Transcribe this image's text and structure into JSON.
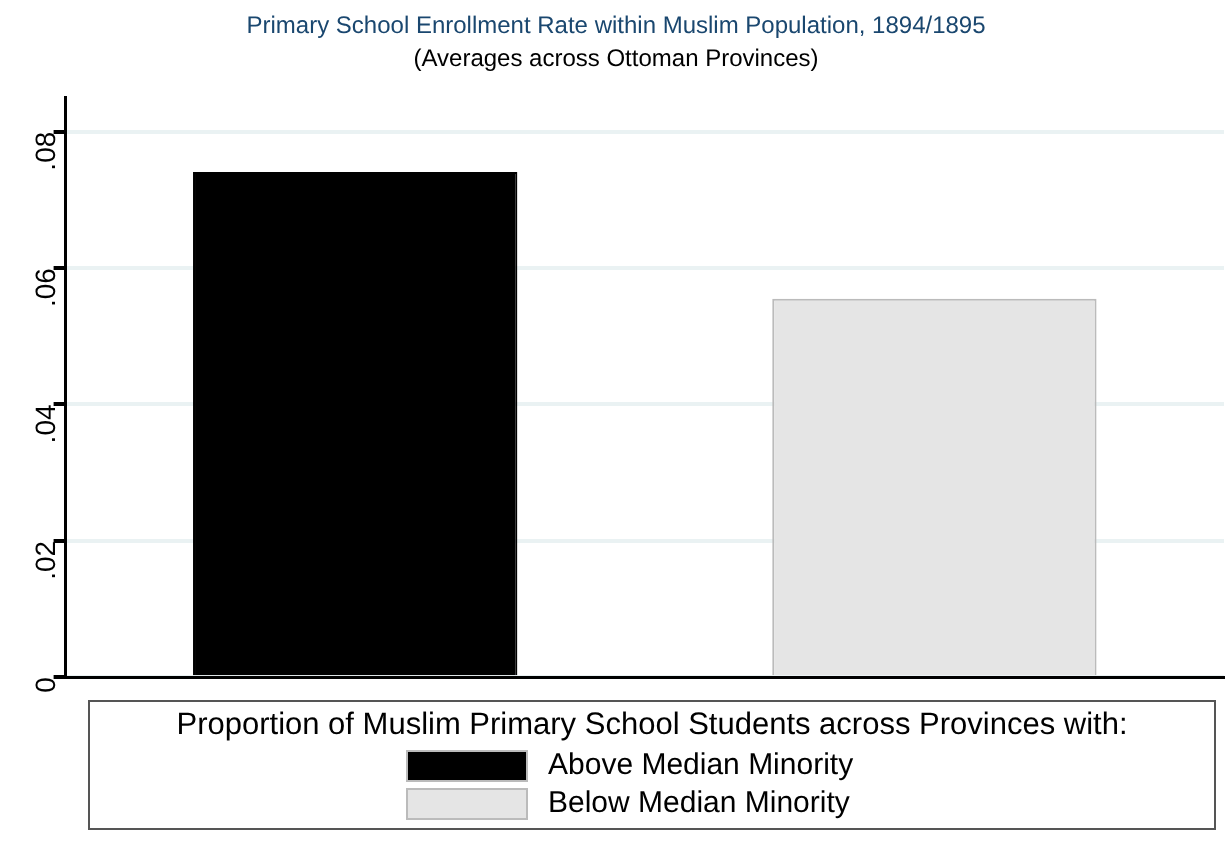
{
  "chart_data": {
    "type": "bar",
    "title": "Primary School Enrollment Rate within Muslim Population, 1894/1895",
    "subtitle": "(Averages across Ottoman Provinces)",
    "categories": [
      null
    ],
    "series": [
      {
        "name": "Above Median Minority",
        "color": "#000000",
        "values": [
          0.0741
        ]
      },
      {
        "name": "Below Median Minority",
        "color": "#e5e5e5",
        "values": [
          0.0555
        ]
      }
    ],
    "ylim": [
      0,
      0.085
    ],
    "yticks": [
      {
        "value": 0,
        "label": "0"
      },
      {
        "value": 0.02,
        "label": ".02"
      },
      {
        "value": 0.04,
        "label": ".04"
      },
      {
        "value": 0.06,
        "label": ".06"
      },
      {
        "value": 0.08,
        "label": ".08"
      }
    ],
    "grid": "y",
    "legend": "bottom",
    "legend_title": "Proportion of Muslim Primary School Students across Provinces with:",
    "tick_labels": "y"
  }
}
